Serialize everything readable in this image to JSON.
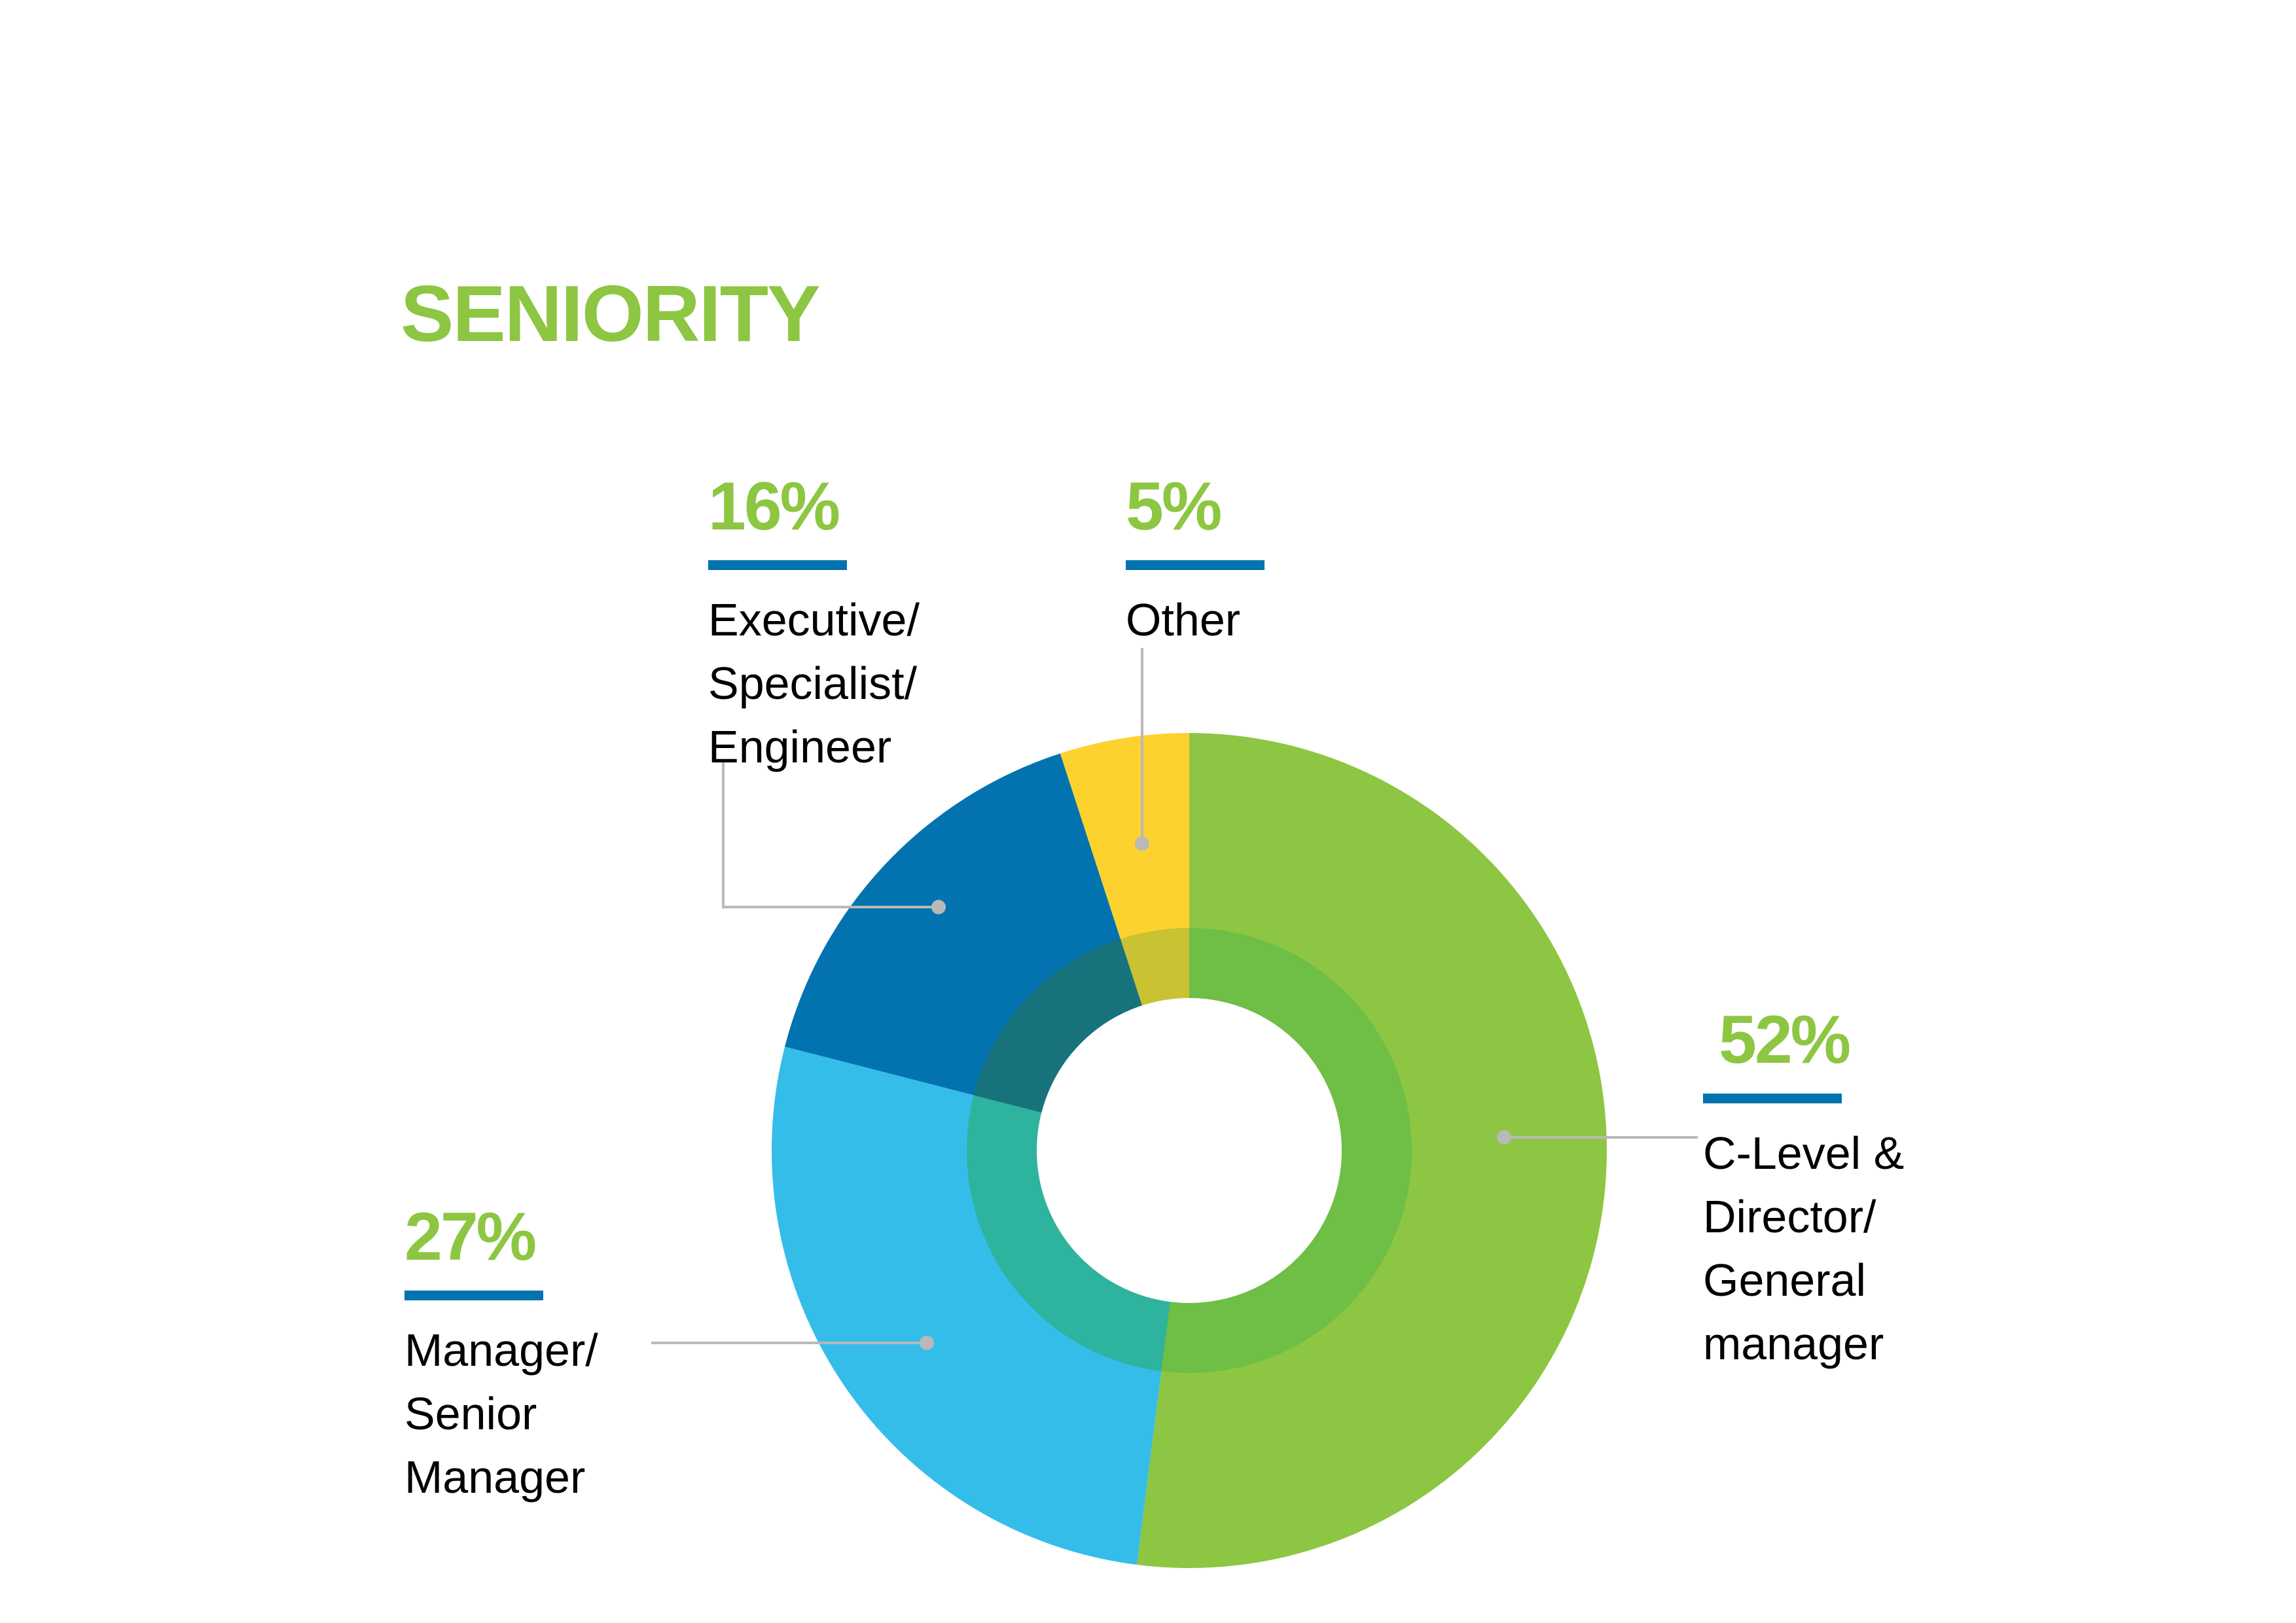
{
  "title": "SENIORITY",
  "colors": {
    "title": "#8dc642",
    "percent": "#8dc642",
    "underline": "#0373b0",
    "leader_line": "#b9b9b9"
  },
  "callouts": [
    {
      "percent": "16%",
      "label": "Executive/\nSpecialist/\nEngineer"
    },
    {
      "percent": "5%",
      "label": "Other"
    },
    {
      "percent": "52%",
      "label": "C-Level &\nDirector/\nGeneral\nmanager"
    },
    {
      "percent": "27%",
      "label": "Manager/\nSenior\nManager"
    }
  ],
  "chart_data": {
    "type": "pie",
    "subtype": "donut",
    "title": "SENIORITY",
    "categories": [
      "C-Level & Director/General manager",
      "Manager/Senior Manager",
      "Executive/Specialist/Engineer",
      "Other"
    ],
    "values": [
      52,
      27,
      16,
      5
    ],
    "unit": "%",
    "colors": [
      "#8dc642",
      "#35bdea",
      "#0373b0",
      "#fdd22e"
    ],
    "inner_ring_colors": [
      "#6fbe46",
      "#2eb39e",
      "#17727c",
      "#c9c233"
    ],
    "start_angle_deg": 0,
    "direction": "clockwise",
    "legend": "callouts"
  }
}
